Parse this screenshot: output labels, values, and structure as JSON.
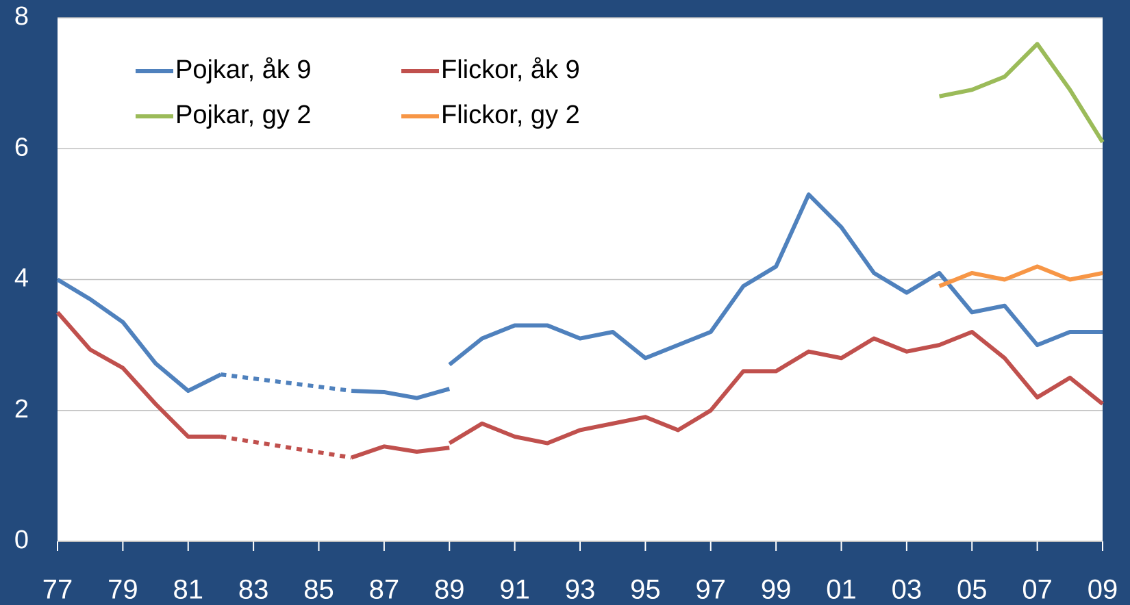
{
  "chart_data": {
    "type": "line",
    "xlim": [
      1977,
      2009
    ],
    "xticks": [
      {
        "value": 1977,
        "label": "77"
      },
      {
        "value": 1979,
        "label": "79"
      },
      {
        "value": 1981,
        "label": "81"
      },
      {
        "value": 1983,
        "label": "83"
      },
      {
        "value": 1985,
        "label": "85"
      },
      {
        "value": 1987,
        "label": "87"
      },
      {
        "value": 1989,
        "label": "89"
      },
      {
        "value": 1991,
        "label": "91"
      },
      {
        "value": 1993,
        "label": "93"
      },
      {
        "value": 1995,
        "label": "95"
      },
      {
        "value": 1997,
        "label": "97"
      },
      {
        "value": 1999,
        "label": "99"
      },
      {
        "value": 2001,
        "label": "01"
      },
      {
        "value": 2003,
        "label": "03"
      },
      {
        "value": 2005,
        "label": "05"
      },
      {
        "value": 2007,
        "label": "07"
      },
      {
        "value": 2009,
        "label": "09"
      }
    ],
    "ylim": [
      0,
      8
    ],
    "yticks": [
      0,
      2,
      4,
      6,
      8
    ],
    "grid": true,
    "legend": "upper-left",
    "series": [
      {
        "name": "Pojkar, åk 9",
        "color": "#4f81bd",
        "x": [
          1977,
          1978,
          1979,
          1980,
          1981,
          1982,
          1986,
          1987,
          1988,
          1989,
          null,
          1989,
          1990,
          1991,
          1992,
          1993,
          1994,
          1995,
          1996,
          1997,
          1998,
          1999,
          2000,
          2001,
          2002,
          2003,
          2004,
          2005,
          2006,
          2007,
          2008,
          2009
        ],
        "values": [
          4.0,
          3.7,
          3.35,
          2.72,
          2.3,
          2.55,
          2.3,
          2.28,
          2.19,
          2.33,
          null,
          2.7,
          3.1,
          3.3,
          3.3,
          3.1,
          3.2,
          2.8,
          3.0,
          3.2,
          3.9,
          4.2,
          5.3,
          4.8,
          4.1,
          3.8,
          4.1,
          3.5,
          3.6,
          3.0,
          3.2,
          3.2
        ]
      },
      {
        "name": "Flickor, åk 9",
        "color": "#c0504d",
        "x": [
          1977,
          1978,
          1979,
          1980,
          1981,
          1982,
          1986,
          1987,
          1988,
          1989,
          null,
          1989,
          1990,
          1991,
          1992,
          1993,
          1994,
          1995,
          1996,
          1997,
          1998,
          1999,
          2000,
          2001,
          2002,
          2003,
          2004,
          2005,
          2006,
          2007,
          2008,
          2009
        ],
        "values": [
          3.5,
          2.93,
          2.65,
          2.1,
          1.6,
          1.6,
          1.28,
          1.45,
          1.37,
          1.43,
          null,
          1.5,
          1.8,
          1.6,
          1.5,
          1.7,
          1.8,
          1.9,
          1.7,
          2.0,
          2.6,
          2.6,
          2.9,
          2.8,
          3.1,
          2.9,
          3.0,
          3.2,
          2.8,
          2.2,
          2.5,
          2.1
        ]
      },
      {
        "name": "Pojkar, gy 2",
        "color": "#9bbb59",
        "x": [
          2004,
          2005,
          2006,
          2007,
          2008,
          2009
        ],
        "values": [
          6.8,
          6.9,
          7.1,
          7.6,
          6.9,
          6.1
        ]
      },
      {
        "name": "Flickor, gy 2",
        "color": "#f79646",
        "x": [
          2004,
          2005,
          2006,
          2007,
          2008,
          2009
        ],
        "values": [
          3.9,
          4.1,
          4.0,
          4.2,
          4.0,
          4.1
        ]
      }
    ]
  }
}
